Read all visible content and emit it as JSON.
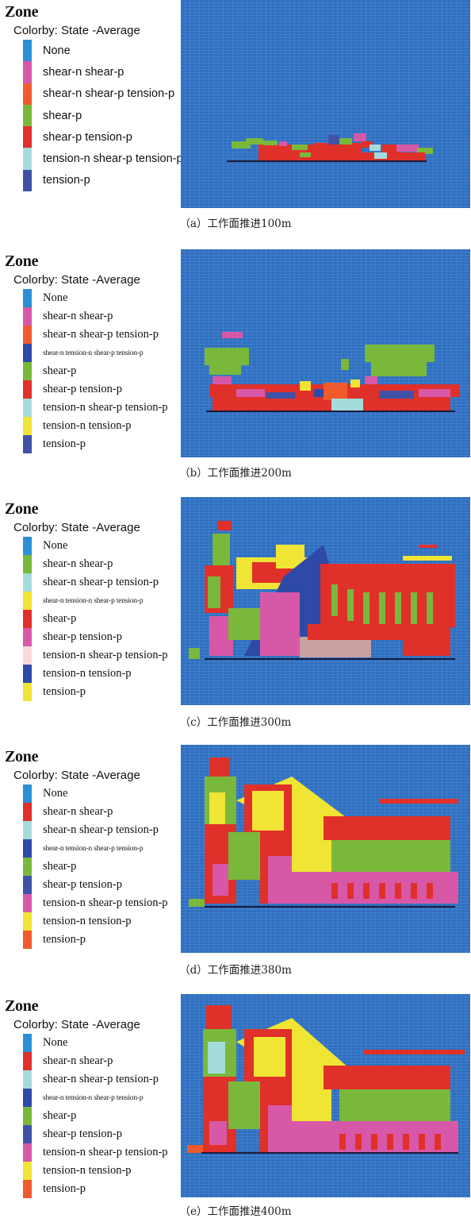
{
  "colors": {
    "None": "#2c8fd6",
    "shear_n_shear_p_pink": "#d858a8",
    "orange": "#f05a2c",
    "green": "#7ab83c",
    "red": "#e0302a",
    "cyan": "#a4dcdc",
    "navy": "#3f52a8",
    "dark_blue": "#2e4aa6",
    "yellow": "#f0e434",
    "light_pink": "#f8d8dc",
    "background_mesh": "#2f6fc0",
    "grid_line": "#5a95d8"
  },
  "panels": [
    {
      "zone_title": "Zone",
      "colorby": "Colorby: State  -Average",
      "caption": "（a）工作面推进100m",
      "legend": [
        {
          "label": "None",
          "color": "#2c8fd6"
        },
        {
          "label": "shear-n shear-p",
          "color": "#d858a8"
        },
        {
          "label": "shear-n shear-p tension-p",
          "color": "#f05a2c"
        },
        {
          "label": "shear-p",
          "color": "#7ab83c"
        },
        {
          "label": "shear-p tension-p",
          "color": "#e0302a"
        },
        {
          "label": "tension-n shear-p tension-p",
          "color": "#a4dcdc"
        },
        {
          "label": "tension-p",
          "color": "#3f52a8"
        }
      ]
    },
    {
      "zone_title": "Zone",
      "colorby": "Colorby: State  -Average",
      "caption": "（b）工作面推进200m",
      "legend": [
        {
          "label": "None",
          "color": "#2c8fd6"
        },
        {
          "label": "shear-n shear-p",
          "color": "#d858a8"
        },
        {
          "label": "shear-n shear-p tension-p",
          "color": "#f05a2c"
        },
        {
          "label": "shear-n tension-n shear-p tension-p",
          "color": "#2e4aa6"
        },
        {
          "label": "shear-p",
          "color": "#7ab83c"
        },
        {
          "label": "shear-p tension-p",
          "color": "#e0302a"
        },
        {
          "label": "tension-n shear-p tension-p",
          "color": "#a4dcdc"
        },
        {
          "label": "tension-n tension-p",
          "color": "#f0e434"
        },
        {
          "label": "tension-p",
          "color": "#3f52a8"
        }
      ]
    },
    {
      "zone_title": "Zone",
      "colorby": "Colorby: State  -Average",
      "caption": "（c）工作面推进300m",
      "legend": [
        {
          "label": "None",
          "color": "#2c8fd6"
        },
        {
          "label": "shear-n shear-p",
          "color": "#7ab83c"
        },
        {
          "label": "shear-n shear-p tension-p",
          "color": "#a4dcdc"
        },
        {
          "label": "shear-n tension-n shear-p tension-p",
          "color": "#f0e434"
        },
        {
          "label": "shear-p",
          "color": "#e0302a"
        },
        {
          "label": "shear-p tension-p",
          "color": "#d858a8"
        },
        {
          "label": "tension-n shear-p tension-p",
          "color": "#f8d8dc"
        },
        {
          "label": "tension-n tension-p",
          "color": "#2e4aa6"
        },
        {
          "label": "tension-p",
          "color": "#f0e434"
        }
      ]
    },
    {
      "zone_title": "Zone",
      "colorby": "Colorby: State  -Average",
      "caption": "（d）工作面推进380m",
      "legend": [
        {
          "label": "None",
          "color": "#2c8fd6"
        },
        {
          "label": "shear-n shear-p",
          "color": "#e0302a"
        },
        {
          "label": "shear-n shear-p tension-p",
          "color": "#a4dcdc"
        },
        {
          "label": "shear-n tension-n shear-p tension-p",
          "color": "#2e4aa6"
        },
        {
          "label": "shear-p",
          "color": "#7ab83c"
        },
        {
          "label": "shear-p tension-p",
          "color": "#3f52a8"
        },
        {
          "label": "tension-n shear-p tension-p",
          "color": "#d858a8"
        },
        {
          "label": "tension-n tension-p",
          "color": "#f0e434"
        },
        {
          "label": "tension-p",
          "color": "#f05a2c"
        }
      ]
    },
    {
      "zone_title": "Zone",
      "colorby": "Colorby: State  -Average",
      "caption": "（e）工作面推进400m",
      "legend": [
        {
          "label": "None",
          "color": "#2c8fd6"
        },
        {
          "label": "shear-n shear-p",
          "color": "#e0302a"
        },
        {
          "label": "shear-n shear-p tension-p",
          "color": "#a4dcdc"
        },
        {
          "label": "shear-n tension-n shear-p tension-p",
          "color": "#2e4aa6"
        },
        {
          "label": "shear-p",
          "color": "#7ab83c"
        },
        {
          "label": "shear-p tension-p",
          "color": "#3f52a8"
        },
        {
          "label": "tension-n shear-p tension-p",
          "color": "#d858a8"
        },
        {
          "label": "tension-n tension-p",
          "color": "#f0e434"
        },
        {
          "label": "tension-p",
          "color": "#f05a2c"
        }
      ]
    }
  ]
}
